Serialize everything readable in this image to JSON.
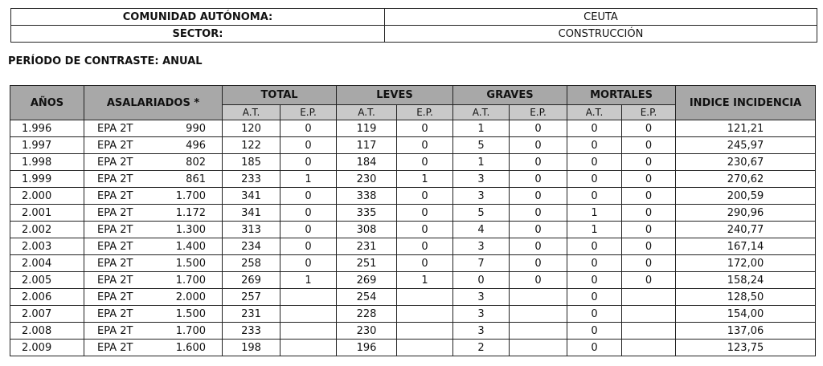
{
  "header": {
    "rows": [
      {
        "label": "COMUNIDAD AUTÓNOMA:",
        "value": "CEUTA"
      },
      {
        "label": "SECTOR:",
        "value": "CONSTRUCCIÓN"
      }
    ]
  },
  "period": "PERÍODO DE CONTRASTE: ANUAL",
  "table": {
    "headers": {
      "years": "AÑOS",
      "employees": "ASALARIADOS *",
      "groups": [
        "TOTAL",
        "LEVES",
        "GRAVES",
        "MORTALES"
      ],
      "sub": [
        "A.T.",
        "E.P.",
        "A.T.",
        "E.P.",
        "A.T.",
        "E.P.",
        "A.T.",
        "E.P."
      ],
      "index": "INDICE INCIDENCIA"
    },
    "rows": [
      [
        "1.996",
        "EPA 2T",
        "990",
        "120",
        "0",
        "119",
        "0",
        "1",
        "0",
        "0",
        "0",
        "121,21"
      ],
      [
        "1.997",
        "EPA 2T",
        "496",
        "122",
        "0",
        "117",
        "0",
        "5",
        "0",
        "0",
        "0",
        "245,97"
      ],
      [
        "1.998",
        "EPA 2T",
        "802",
        "185",
        "0",
        "184",
        "0",
        "1",
        "0",
        "0",
        "0",
        "230,67"
      ],
      [
        "1.999",
        "EPA 2T",
        "861",
        "233",
        "1",
        "230",
        "1",
        "3",
        "0",
        "0",
        "0",
        "270,62"
      ],
      [
        "2.000",
        "EPA 2T",
        "1.700",
        "341",
        "0",
        "338",
        "0",
        "3",
        "0",
        "0",
        "0",
        "200,59"
      ],
      [
        "2.001",
        "EPA 2T",
        "1.172",
        "341",
        "0",
        "335",
        "0",
        "5",
        "0",
        "1",
        "0",
        "290,96"
      ],
      [
        "2.002",
        "EPA 2T",
        "1.300",
        "313",
        "0",
        "308",
        "0",
        "4",
        "0",
        "1",
        "0",
        "240,77"
      ],
      [
        "2.003",
        "EPA 2T",
        "1.400",
        "234",
        "0",
        "231",
        "0",
        "3",
        "0",
        "0",
        "0",
        "167,14"
      ],
      [
        "2.004",
        "EPA 2T",
        "1.500",
        "258",
        "0",
        "251",
        "0",
        "7",
        "0",
        "0",
        "0",
        "172,00"
      ],
      [
        "2.005",
        "EPA 2T",
        "1.700",
        "269",
        "1",
        "269",
        "1",
        "0",
        "0",
        "0",
        "0",
        "158,24"
      ],
      [
        "2.006",
        "EPA 2T",
        "2.000",
        "257",
        null,
        "254",
        null,
        "3",
        null,
        "0",
        null,
        "128,50"
      ],
      [
        "2.007",
        "EPA 2T",
        "1.500",
        "231",
        null,
        "228",
        null,
        "3",
        null,
        "0",
        null,
        "154,00"
      ],
      [
        "2.008",
        "EPA 2T",
        "1.700",
        "233",
        null,
        "230",
        null,
        "3",
        null,
        "0",
        null,
        "137,06"
      ],
      [
        "2.009",
        "EPA 2T",
        "1.600",
        "198",
        null,
        "196",
        null,
        "2",
        null,
        "0",
        null,
        "123,75"
      ]
    ]
  }
}
